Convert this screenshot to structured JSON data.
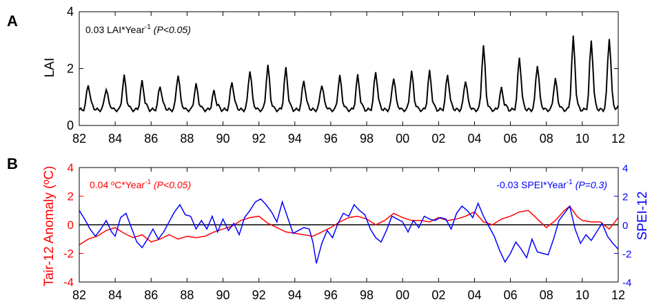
{
  "panel_labels": {
    "a": "A",
    "b": "B"
  },
  "x_ticks": [
    "82",
    "84",
    "86",
    "88",
    "90",
    "92",
    "94",
    "96",
    "98",
    "00",
    "02",
    "04",
    "06",
    "08",
    "10",
    "12"
  ],
  "panel_a": {
    "ylabel": "LAI",
    "y_ticks": [
      "0",
      "2",
      "4"
    ],
    "trend": {
      "prefix": "0.03 LAI*Year",
      "sup": "-1",
      "p": "(P<0.05)"
    }
  },
  "panel_b": {
    "ylabel_left": "Tair-12 Anomaly (ºC)",
    "ylabel_right": "SPEI-12",
    "y_ticks_left": [
      "-4",
      "-2",
      "0",
      "2",
      "4"
    ],
    "y_ticks_right": [
      "-4",
      "-2",
      "0",
      "2",
      "4"
    ],
    "trend_left": {
      "prefix": "0.04 ºC*Year",
      "sup": "-1",
      "p": "(P<0.05)"
    },
    "trend_right": {
      "prefix": "-0.03 SPEI*Year",
      "sup": "-1",
      "p": "(P=0.3)"
    }
  },
  "colors": {
    "lai": "#000000",
    "tair": "#ff0000",
    "spei": "#0000ff",
    "zero_line": "#000000"
  },
  "chart_data": [
    {
      "type": "line",
      "x_range": [
        1982,
        2012
      ],
      "ylim": [
        0,
        4
      ],
      "series": [
        {
          "yearly_peaks": [
            {
              "year": 1982,
              "peak": 1.45
            },
            {
              "year": 1983,
              "peak": 1.3
            },
            {
              "year": 1984,
              "peak": 1.75
            },
            {
              "year": 1985,
              "peak": 1.55
            },
            {
              "year": 1986,
              "peak": 1.4
            },
            {
              "year": 1987,
              "peak": 1.8
            },
            {
              "year": 1988,
              "peak": 1.45
            },
            {
              "year": 1989,
              "peak": 1.2
            },
            {
              "year": 1990,
              "peak": 1.55
            },
            {
              "year": 1991,
              "peak": 1.95
            },
            {
              "year": 1992,
              "peak": 2.1
            },
            {
              "year": 1993,
              "peak": 2.0
            },
            {
              "year": 1994,
              "peak": 1.6
            },
            {
              "year": 1995,
              "peak": 1.45
            },
            {
              "year": 1996,
              "peak": 1.75
            },
            {
              "year": 1997,
              "peak": 1.75
            },
            {
              "year": 1998,
              "peak": 1.9
            },
            {
              "year": 1999,
              "peak": 1.7
            },
            {
              "year": 2000,
              "peak": 1.9
            },
            {
              "year": 2001,
              "peak": 1.9
            },
            {
              "year": 2002,
              "peak": 1.8
            },
            {
              "year": 2003,
              "peak": 1.6
            },
            {
              "year": 2004,
              "peak": 2.8
            },
            {
              "year": 2005,
              "peak": 1.3
            },
            {
              "year": 2006,
              "peak": 2.4
            },
            {
              "year": 2007,
              "peak": 2.15
            },
            {
              "year": 2008,
              "peak": 1.65
            },
            {
              "year": 2009,
              "peak": 3.1
            },
            {
              "year": 2010,
              "peak": 3.0
            },
            {
              "year": 2011,
              "peak": 3.1
            }
          ],
          "baseline": 0.55,
          "end_value": 0.7
        }
      ]
    },
    {
      "type": "line",
      "x_range": [
        1982,
        2012
      ],
      "ylim_left": [
        -4,
        4
      ],
      "ylim_right": [
        -4,
        4
      ],
      "series": [
        {
          "axis": "left",
          "points": [
            [
              1982.0,
              -1.4
            ],
            [
              1982.5,
              -1.0
            ],
            [
              1983.0,
              -0.8
            ],
            [
              1983.5,
              -0.4
            ],
            [
              1984.0,
              -0.2
            ],
            [
              1984.5,
              -0.6
            ],
            [
              1985.0,
              -0.9
            ],
            [
              1985.5,
              -0.7
            ],
            [
              1986.0,
              -1.2
            ],
            [
              1986.5,
              -1.0
            ],
            [
              1987.0,
              -0.7
            ],
            [
              1987.5,
              -1.0
            ],
            [
              1988.0,
              -0.8
            ],
            [
              1988.5,
              -0.9
            ],
            [
              1989.0,
              -0.8
            ],
            [
              1989.5,
              -0.5
            ],
            [
              1990.0,
              -0.3
            ],
            [
              1990.5,
              -0.1
            ],
            [
              1991.0,
              0.3
            ],
            [
              1991.5,
              0.5
            ],
            [
              1992.0,
              0.6
            ],
            [
              1992.5,
              0.1
            ],
            [
              1993.0,
              -0.2
            ],
            [
              1993.5,
              -0.5
            ],
            [
              1994.0,
              -0.6
            ],
            [
              1994.5,
              -0.7
            ],
            [
              1995.0,
              -0.8
            ],
            [
              1995.5,
              -0.5
            ],
            [
              1996.0,
              -0.2
            ],
            [
              1996.5,
              0.2
            ],
            [
              1997.0,
              0.5
            ],
            [
              1997.5,
              0.6
            ],
            [
              1998.0,
              0.4
            ],
            [
              1998.5,
              0.0
            ],
            [
              1999.0,
              0.3
            ],
            [
              1999.5,
              0.8
            ],
            [
              2000.0,
              0.5
            ],
            [
              2000.5,
              0.3
            ],
            [
              2001.0,
              0.3
            ],
            [
              2001.5,
              0.2
            ],
            [
              2002.0,
              0.5
            ],
            [
              2002.5,
              0.3
            ],
            [
              2003.0,
              0.4
            ],
            [
              2003.5,
              0.6
            ],
            [
              2004.0,
              0.9
            ],
            [
              2004.5,
              0.2
            ],
            [
              2005.0,
              0.0
            ],
            [
              2005.5,
              0.4
            ],
            [
              2006.0,
              0.6
            ],
            [
              2006.5,
              0.9
            ],
            [
              2007.0,
              1.0
            ],
            [
              2007.5,
              0.4
            ],
            [
              2008.0,
              -0.2
            ],
            [
              2008.5,
              0.3
            ],
            [
              2009.0,
              1.0
            ],
            [
              2009.3,
              1.3
            ],
            [
              2009.7,
              0.6
            ],
            [
              2010.0,
              0.3
            ],
            [
              2010.5,
              0.2
            ],
            [
              2011.0,
              0.2
            ],
            [
              2011.5,
              -0.3
            ],
            [
              2012.0,
              0.5
            ]
          ]
        },
        {
          "axis": "right",
          "points": [
            [
              1982.0,
              1.0
            ],
            [
              1982.3,
              0.4
            ],
            [
              1982.6,
              -0.3
            ],
            [
              1982.9,
              -0.8
            ],
            [
              1983.2,
              -0.3
            ],
            [
              1983.5,
              0.3
            ],
            [
              1983.8,
              -0.5
            ],
            [
              1984.0,
              -0.8
            ],
            [
              1984.3,
              0.5
            ],
            [
              1984.6,
              0.8
            ],
            [
              1984.9,
              -0.2
            ],
            [
              1985.2,
              -1.2
            ],
            [
              1985.5,
              -1.6
            ],
            [
              1985.8,
              -1.0
            ],
            [
              1986.1,
              -0.3
            ],
            [
              1986.4,
              -1.0
            ],
            [
              1986.7,
              -0.5
            ],
            [
              1987.0,
              0.2
            ],
            [
              1987.3,
              0.9
            ],
            [
              1987.6,
              1.4
            ],
            [
              1987.9,
              0.7
            ],
            [
              1988.2,
              0.6
            ],
            [
              1988.5,
              -0.3
            ],
            [
              1988.8,
              0.3
            ],
            [
              1989.1,
              -0.3
            ],
            [
              1989.4,
              0.6
            ],
            [
              1989.7,
              -0.5
            ],
            [
              1990.0,
              0.4
            ],
            [
              1990.3,
              -0.4
            ],
            [
              1990.6,
              0.1
            ],
            [
              1990.9,
              -0.7
            ],
            [
              1991.2,
              0.5
            ],
            [
              1991.5,
              1.0
            ],
            [
              1991.8,
              1.6
            ],
            [
              1992.1,
              1.8
            ],
            [
              1992.4,
              1.4
            ],
            [
              1992.7,
              0.9
            ],
            [
              1993.0,
              0.2
            ],
            [
              1993.3,
              1.6
            ],
            [
              1993.6,
              0.5
            ],
            [
              1993.9,
              -0.6
            ],
            [
              1994.2,
              -0.4
            ],
            [
              1994.5,
              -0.2
            ],
            [
              1994.8,
              -0.3
            ],
            [
              1995.0,
              -1.2
            ],
            [
              1995.2,
              -2.7
            ],
            [
              1995.5,
              -1.3
            ],
            [
              1995.8,
              -0.4
            ],
            [
              1996.1,
              -0.9
            ],
            [
              1996.4,
              0.1
            ],
            [
              1996.7,
              0.8
            ],
            [
              1997.0,
              0.6
            ],
            [
              1997.3,
              1.4
            ],
            [
              1997.6,
              1.0
            ],
            [
              1997.9,
              0.7
            ],
            [
              1998.2,
              -0.3
            ],
            [
              1998.5,
              -0.9
            ],
            [
              1998.8,
              -1.2
            ],
            [
              1999.1,
              -0.4
            ],
            [
              1999.4,
              0.6
            ],
            [
              1999.7,
              0.4
            ],
            [
              2000.0,
              0.2
            ],
            [
              2000.3,
              -0.5
            ],
            [
              2000.6,
              0.3
            ],
            [
              2000.9,
              -0.2
            ],
            [
              2001.2,
              0.6
            ],
            [
              2001.5,
              0.4
            ],
            [
              2001.8,
              0.3
            ],
            [
              2002.1,
              0.5
            ],
            [
              2002.4,
              0.4
            ],
            [
              2002.7,
              -0.3
            ],
            [
              2003.0,
              0.8
            ],
            [
              2003.3,
              1.3
            ],
            [
              2003.6,
              1.0
            ],
            [
              2003.9,
              0.5
            ],
            [
              2004.2,
              1.5
            ],
            [
              2004.5,
              0.6
            ],
            [
              2004.8,
              -0.1
            ],
            [
              2005.1,
              -0.8
            ],
            [
              2005.4,
              -1.8
            ],
            [
              2005.7,
              -2.6
            ],
            [
              2006.0,
              -2.0
            ],
            [
              2006.3,
              -1.2
            ],
            [
              2006.6,
              -1.7
            ],
            [
              2006.9,
              -2.3
            ],
            [
              2007.2,
              -1.0
            ],
            [
              2007.5,
              -1.9
            ],
            [
              2007.8,
              -2.0
            ],
            [
              2008.1,
              -2.1
            ],
            [
              2008.4,
              -1.0
            ],
            [
              2008.7,
              0.3
            ],
            [
              2009.0,
              0.8
            ],
            [
              2009.3,
              1.3
            ],
            [
              2009.6,
              -0.3
            ],
            [
              2009.9,
              -1.3
            ],
            [
              2010.2,
              -0.7
            ],
            [
              2010.5,
              -1.1
            ],
            [
              2010.8,
              -0.5
            ],
            [
              2011.1,
              0.1
            ],
            [
              2011.4,
              -0.8
            ],
            [
              2011.7,
              -1.3
            ],
            [
              2012.0,
              -1.7
            ]
          ]
        }
      ]
    }
  ]
}
